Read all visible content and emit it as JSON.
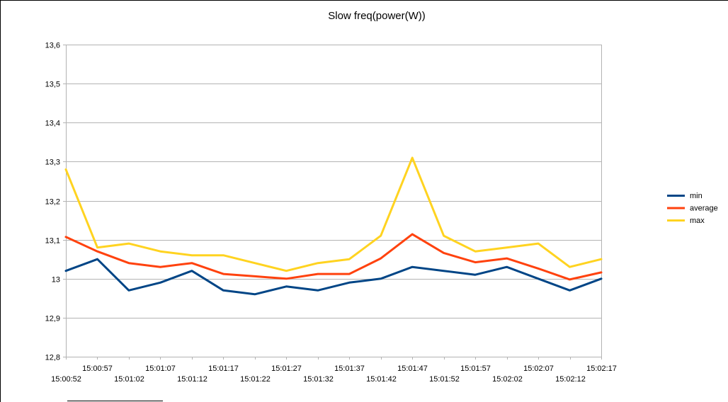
{
  "chart_data": {
    "type": "line",
    "title": "Slow freq(power(W))",
    "xlabel": "",
    "ylabel": "",
    "ylim": [
      12.8,
      13.6
    ],
    "yticks": [
      "12,8",
      "12,9",
      "13",
      "13,1",
      "13,2",
      "13,3",
      "13,4",
      "13,5",
      "13,6"
    ],
    "ytick_values": [
      12.8,
      12.9,
      13.0,
      13.1,
      13.2,
      13.3,
      13.4,
      13.5,
      13.6
    ],
    "grid": true,
    "legend_position": "right",
    "x": [
      "15:00:52",
      "15:00:57",
      "15:01:02",
      "15:01:07",
      "15:01:12",
      "15:01:17",
      "15:01:22",
      "15:01:27",
      "15:01:32",
      "15:01:37",
      "15:01:42",
      "15:01:47",
      "15:01:52",
      "15:01:57",
      "15:02:02",
      "15:02:07",
      "15:02:12",
      "15:02:17"
    ],
    "series": [
      {
        "name": "min",
        "color": "#004586",
        "values": [
          13.02,
          13.05,
          12.97,
          12.99,
          13.02,
          12.97,
          12.96,
          12.98,
          12.97,
          12.99,
          13.0,
          13.03,
          13.02,
          13.01,
          13.03,
          13.0,
          12.97,
          13.0
        ]
      },
      {
        "name": "average",
        "color": "#ff420e",
        "values": [
          13.107,
          13.07,
          13.04,
          13.03,
          13.04,
          13.012,
          13.006,
          13.0,
          13.012,
          13.012,
          13.052,
          13.114,
          13.066,
          13.042,
          13.052,
          13.026,
          12.998,
          13.016
        ]
      },
      {
        "name": "max",
        "color": "#ffd320",
        "values": [
          13.28,
          13.08,
          13.09,
          13.07,
          13.06,
          13.06,
          13.04,
          13.02,
          13.04,
          13.05,
          13.11,
          13.31,
          13.11,
          13.07,
          13.08,
          13.09,
          13.03,
          13.05
        ]
      }
    ]
  }
}
